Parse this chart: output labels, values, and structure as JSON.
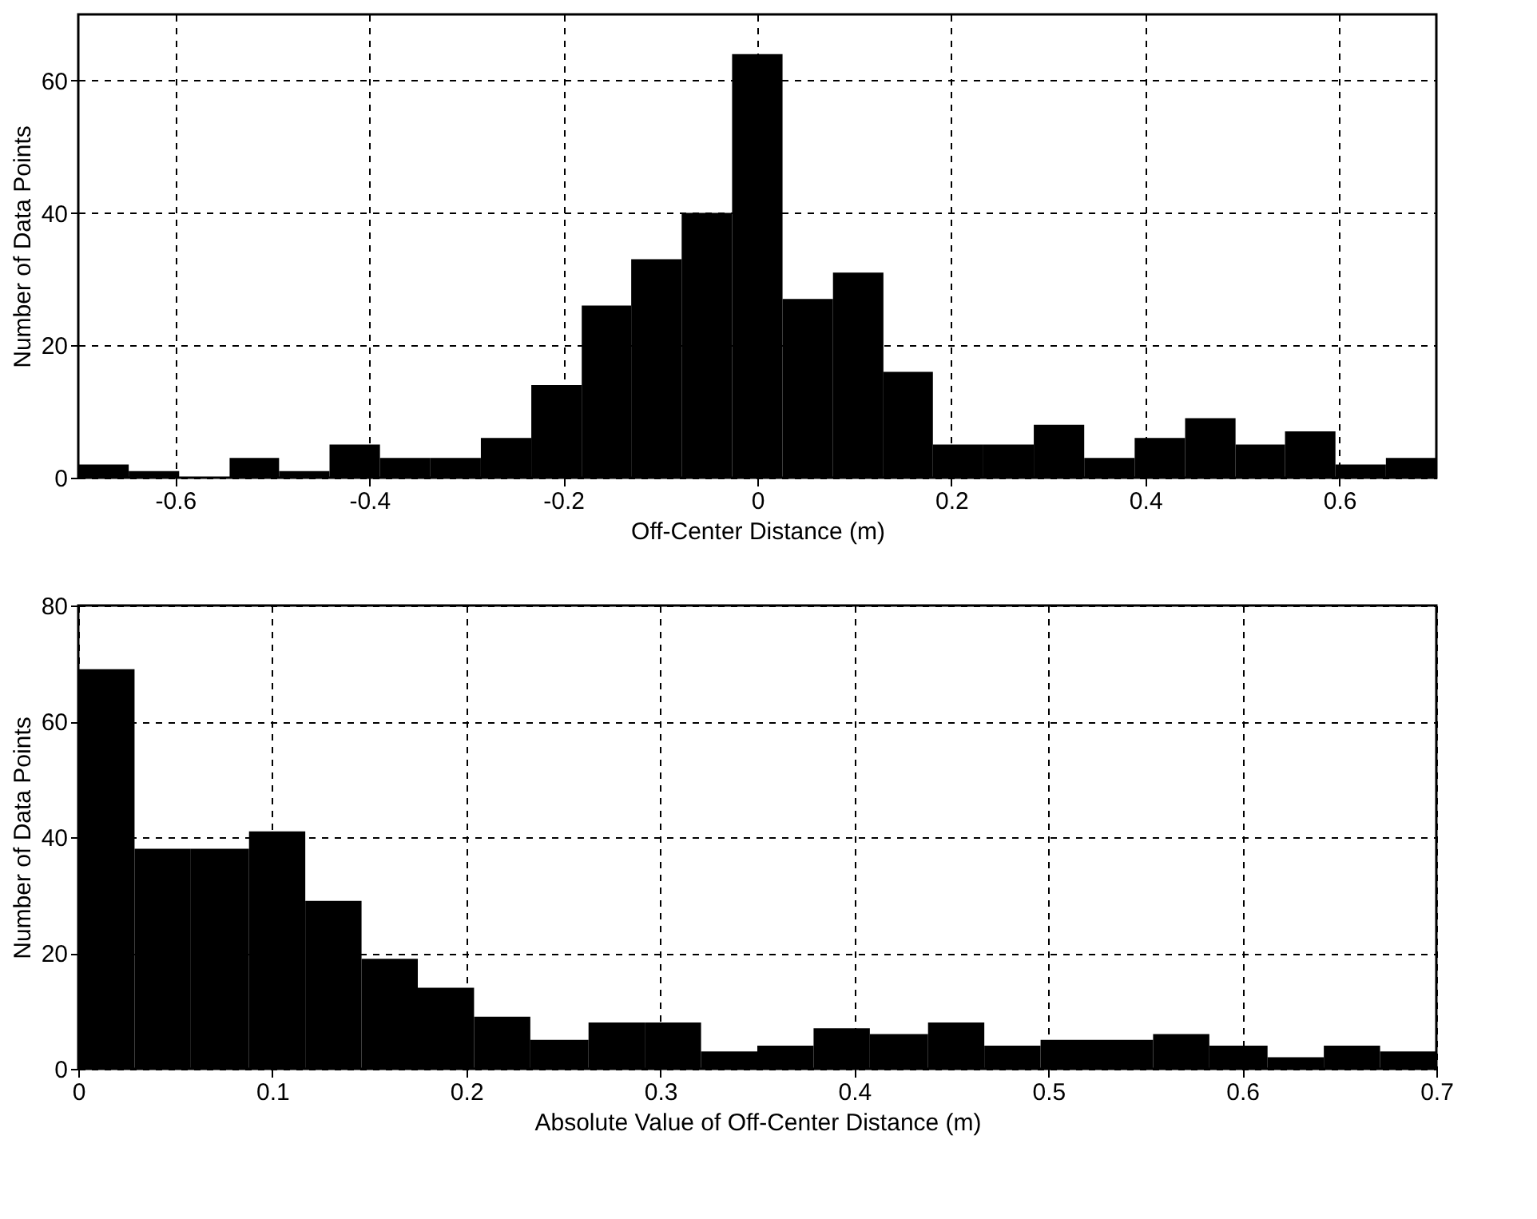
{
  "chart_data": [
    {
      "type": "histogram",
      "xlabel": "Off-Center Distance (m)",
      "ylabel": "Number of Data Points",
      "color": "#000000",
      "bins": [
        -0.7,
        -0.648,
        -0.596,
        -0.544,
        -0.493,
        -0.441,
        -0.389,
        -0.337,
        -0.285,
        -0.233,
        -0.181,
        -0.13,
        -0.078,
        -0.026,
        0.026,
        0.078,
        0.13,
        0.181,
        0.233,
        0.285,
        0.337,
        0.389,
        0.441,
        0.493,
        0.544,
        0.596,
        0.648,
        0.7
      ],
      "values": [
        2,
        1,
        0,
        3,
        1,
        5,
        3,
        3,
        6,
        14,
        26,
        33,
        40,
        64,
        27,
        31,
        16,
        5,
        5,
        8,
        3,
        6,
        9,
        5,
        7,
        2,
        3
      ],
      "xlim": [
        -0.7,
        0.7
      ],
      "xticks": [
        -0.6,
        -0.4,
        -0.2,
        0,
        0.2,
        0.4,
        0.6
      ],
      "ylim": [
        0,
        70
      ],
      "yticks": [
        0,
        20,
        40,
        60
      ],
      "grid": true,
      "line_style": "dashed"
    },
    {
      "type": "histogram",
      "xlabel": "Absolute Value of Off-Center Distance (m)",
      "ylabel": "Number of Data Points",
      "color": "#000000",
      "bins": [
        0,
        0.029,
        0.058,
        0.088,
        0.117,
        0.146,
        0.175,
        0.204,
        0.233,
        0.263,
        0.292,
        0.321,
        0.35,
        0.379,
        0.408,
        0.438,
        0.467,
        0.496,
        0.525,
        0.554,
        0.583,
        0.613,
        0.642,
        0.671,
        0.7
      ],
      "values": [
        69,
        38,
        38,
        41,
        29,
        19,
        14,
        9,
        5,
        8,
        8,
        3,
        4,
        7,
        6,
        8,
        4,
        5,
        5,
        6,
        4,
        2,
        4,
        3
      ],
      "xlim": [
        0,
        0.7
      ],
      "xticks": [
        0,
        0.1,
        0.2,
        0.3,
        0.4,
        0.5,
        0.6,
        0.7
      ],
      "ylim": [
        0,
        80
      ],
      "yticks": [
        0,
        20,
        40,
        60,
        80
      ],
      "grid": true,
      "line_style": "dashed"
    }
  ]
}
